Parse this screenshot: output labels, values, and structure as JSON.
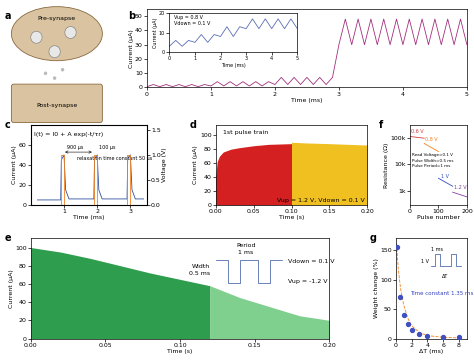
{
  "diagram": {
    "panel": "a",
    "labels": [
      "Pre-synapse",
      "Post-synapse"
    ]
  },
  "chart_data": [
    {
      "panel": "b",
      "type": "line",
      "x_label": "Time (ms)",
      "y_label": "Current (μA)",
      "xlim": [
        0,
        5
      ],
      "xticks": [
        0,
        1,
        2,
        3,
        4,
        5
      ],
      "ylim": [
        0,
        55
      ],
      "yticks": [
        0,
        10,
        20,
        30,
        40,
        50
      ],
      "series": [
        {
          "color": "#a3307f",
          "x": [
            0,
            0.1,
            0.2,
            0.3,
            0.4,
            0.5,
            0.6,
            0.7,
            0.8,
            0.9,
            1.0,
            1.1,
            1.2,
            1.3,
            1.4,
            1.5,
            1.6,
            1.7,
            1.8,
            1.9,
            2.0,
            2.1,
            2.2,
            2.3,
            2.4,
            2.5,
            2.6,
            2.7,
            2.8,
            2.9,
            3.0,
            3.1,
            3.2,
            3.3,
            3.4,
            3.5,
            3.6,
            3.7,
            3.8,
            3.9,
            4.0,
            4.1,
            4.2,
            4.3,
            4.4,
            4.5,
            4.6,
            4.7,
            4.8,
            4.9,
            5.0
          ],
          "values": [
            0.5,
            2,
            0.5,
            2,
            0.5,
            2,
            0.5,
            2,
            0.5,
            2,
            1,
            4,
            1,
            4,
            1,
            4,
            1,
            4,
            1,
            4,
            2,
            7,
            2,
            7,
            2,
            7,
            2,
            7,
            2,
            7,
            30,
            48,
            30,
            48,
            30,
            48,
            30,
            48,
            30,
            48,
            30,
            48,
            30,
            48,
            30,
            48,
            30,
            48,
            30,
            48,
            30
          ]
        }
      ],
      "inset": {
        "type": "line",
        "x_label": "Time (ms)",
        "y_label": "Current (μA)",
        "xlim": [
          0,
          5
        ],
        "xticks": [
          0,
          1,
          2,
          3,
          4,
          5
        ],
        "ylim": [
          0,
          20
        ],
        "yticks": [
          0,
          10,
          20
        ],
        "series": [
          {
            "color": "#5b6fb5",
            "x": [
              0,
              0.25,
              0.5,
              0.75,
              1.0,
              1.25,
              1.5,
              1.75,
              2.0,
              2.25,
              2.5,
              2.75,
              3.0,
              3.25,
              3.5,
              3.75,
              4.0,
              4.25,
              4.5,
              4.75,
              5.0
            ],
            "values": [
              3,
              6,
              3,
              6,
              5,
              9,
              5,
              9,
              8,
              13,
              8,
              13,
              12,
              17,
              12,
              17,
              12,
              17,
              12,
              17,
              12
            ]
          }
        ],
        "annotations": [
          "Vup = 0.8 V",
          "Vdown = 0.1 V"
        ]
      }
    },
    {
      "panel": "c",
      "type": "line",
      "x_label": "Time (ms)",
      "y_label": "Current (μA)",
      "y2_label": "Voltage (V)",
      "xlim": [
        0,
        3.5
      ],
      "xticks": [
        1,
        2,
        3
      ],
      "ylim": [
        0,
        80
      ],
      "yticks": [
        0,
        20,
        40,
        60
      ],
      "y2lim": [
        0,
        1.6
      ],
      "y2ticks": [
        {
          "value": 0,
          "label": "0.0"
        },
        0.5,
        {
          "value": 1,
          "label": "1.0"
        },
        1.5
      ],
      "series": [
        {
          "color": "#3050a0",
          "x": [
            0.2,
            0.9,
            0.92,
            1.0,
            1.05,
            1.15,
            1.9,
            1.92,
            2.0,
            2.05,
            2.15,
            2.9,
            2.92,
            3.0,
            3.05,
            3.15,
            3.4
          ],
          "values": [
            5,
            5,
            45,
            50,
            15,
            6,
            6,
            46,
            50,
            15,
            6,
            6,
            46,
            50,
            15,
            6,
            6
          ]
        },
        {
          "color": "#f08020",
          "axis": "y2",
          "x": [
            0.2,
            0.9,
            0.9,
            1.0,
            1.0,
            1.9,
            1.9,
            2.0,
            2.0,
            2.9,
            2.9,
            3.0,
            3.0,
            3.4
          ],
          "values": [
            0,
            0,
            1,
            1,
            0,
            0,
            1,
            1,
            0,
            0,
            1,
            1,
            0,
            0
          ]
        }
      ],
      "annotations": [
        "I(t) = I0 + A exp(-t/τr)",
        "900 μs",
        "100 μs",
        "relaxation time constant 50 μs"
      ]
    },
    {
      "panel": "d",
      "type": "area",
      "x_label": "Time (s)",
      "y_label": "Current (μA)",
      "xlim": [
        0,
        0.2
      ],
      "xticks": [
        {
          "value": 0,
          "label": "0.00"
        },
        0.05,
        {
          "value": 0.1,
          "label": "0.10"
        },
        0.15,
        {
          "value": 0.2,
          "label": "0.20"
        }
      ],
      "ylim": [
        0,
        115
      ],
      "yticks": [
        0,
        20,
        40,
        60,
        80,
        100
      ],
      "series": [
        {
          "color": "#d42020",
          "x": [
            0,
            0.002,
            0.005,
            0.01,
            0.02,
            0.03,
            0.05,
            0.07,
            0.1
          ],
          "values": [
            40,
            62,
            70,
            76,
            80,
            82,
            85,
            87,
            88
          ]
        },
        {
          "color": "#f0c020",
          "x": [
            0.1,
            0.12,
            0.15,
            0.2
          ],
          "values": [
            90,
            89,
            88,
            86
          ]
        }
      ],
      "annotations": [
        "1st pulse train",
        "Vup = 1.2 V, Vdown = 0.1 V"
      ]
    },
    {
      "panel": "f",
      "type": "line",
      "log": "y",
      "x_label": "Pulse number",
      "y_label": "Resistance (Ω)",
      "xlim": [
        0,
        200
      ],
      "xticks": [
        0,
        100,
        200
      ],
      "ylim": [
        300,
        300000
      ],
      "yticks": [
        {
          "value": 1000,
          "label": "1k"
        },
        {
          "value": 10000,
          "label": "10k"
        },
        {
          "value": 100000,
          "label": "100k"
        }
      ],
      "series": [
        {
          "color": "#d04040",
          "x": [
            0,
            50
          ],
          "values": [
            110000,
            95000
          ]
        },
        {
          "color": "#f08020",
          "x": [
            50,
            100
          ],
          "values": [
            60000,
            30000
          ]
        },
        {
          "color": "#3050c0",
          "x": [
            100,
            150
          ],
          "values": [
            3000,
            1500
          ]
        },
        {
          "color": "#8040a0",
          "x": [
            150,
            200
          ],
          "values": [
            900,
            600
          ]
        }
      ],
      "annotations": [
        "0.6 V",
        "0.8 V",
        "1 V",
        "1.2 V",
        "Read Voltage=0.1 V",
        "Pulse Width=0.5 ms",
        "Pulse Period=1 ms"
      ]
    },
    {
      "panel": "e",
      "type": "area",
      "x_label": "Time (s)",
      "y_label": "Current (μA)",
      "xlim": [
        0,
        0.2
      ],
      "xticks": [
        {
          "value": 0,
          "label": "0.00"
        },
        0.05,
        {
          "value": 0.1,
          "label": "0.10"
        },
        0.15,
        {
          "value": 0.2,
          "label": "0.20"
        }
      ],
      "ylim": [
        0,
        110
      ],
      "yticks": [
        0,
        20,
        40,
        60,
        80,
        100
      ],
      "series": [
        {
          "color": "#2e9e4e",
          "x": [
            0,
            0.02,
            0.04,
            0.06,
            0.08,
            0.1,
            0.12
          ],
          "values": [
            100,
            95,
            88,
            80,
            72,
            65,
            58
          ]
        },
        {
          "color": "#7fcf8f",
          "x": [
            0.12,
            0.14,
            0.16,
            0.18,
            0.2
          ],
          "values": [
            58,
            45,
            35,
            25,
            20
          ]
        }
      ],
      "annotations": [
        "Period",
        "1 ms",
        "Width",
        "0.5 ms",
        "Vdown = 0.1 V",
        "Vup = -1.2 V"
      ]
    },
    {
      "panel": "g",
      "type": "scatter",
      "x_label": "ΔT (ms)",
      "y_label": "Weight change (%)",
      "xlim": [
        0,
        9
      ],
      "xticks": [
        0,
        2,
        4,
        6,
        8
      ],
      "ylim": [
        0,
        170
      ],
      "yticks": [
        0,
        50,
        100,
        150
      ],
      "series": [
        {
          "color": "#4050c0",
          "x": [
            0.2,
            0.5,
            1,
            1.5,
            2,
            3,
            4,
            6,
            8
          ],
          "values": [
            155,
            70,
            40,
            25,
            15,
            8,
            5,
            3,
            2
          ]
        },
        {
          "type": "line",
          "line_style": "dashed",
          "color": "#f08020",
          "x": [
            0.1,
            0.3,
            0.6,
            1,
            1.5,
            2,
            3,
            4,
            6,
            8
          ],
          "values": [
            160,
            120,
            85,
            57,
            35,
            22,
            10,
            5,
            2,
            1
          ]
        }
      ],
      "annotations": [
        "Time constant 1.35 ms",
        "1 V",
        "1 ms",
        "ΔT"
      ]
    }
  ]
}
